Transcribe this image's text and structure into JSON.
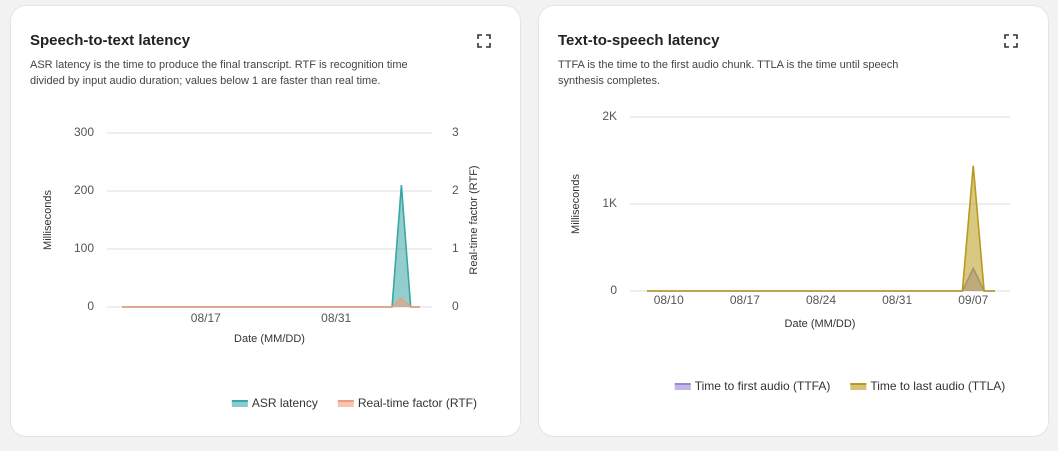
{
  "chart_data": [
    {
      "type": "area",
      "title": "Speech-to-text latency",
      "subtitle": "ASR latency is the time to produce the final transcript. RTF is recognition time divided by input audio duration; values below 1 are faster than real time.",
      "x": [
        "08/08",
        "08/09",
        "08/10",
        "08/11",
        "08/12",
        "08/13",
        "08/14",
        "08/15",
        "08/16",
        "08/17",
        "08/18",
        "08/19",
        "08/20",
        "08/21",
        "08/22",
        "08/23",
        "08/24",
        "08/25",
        "08/26",
        "08/27",
        "08/28",
        "08/29",
        "08/30",
        "08/31",
        "09/01",
        "09/02",
        "09/03",
        "09/04",
        "09/05",
        "09/06",
        "09/07",
        "09/08",
        "09/09"
      ],
      "xticks": [
        "08/17",
        "08/31"
      ],
      "xlabel": "Date (MM/DD)",
      "ylabel": "Milliseconds",
      "y2label": "Real-time factor (RTF)",
      "ylim": [
        0,
        300
      ],
      "yticks": [
        0,
        100,
        200,
        300
      ],
      "y2lim": [
        0,
        3
      ],
      "y2ticks": [
        0,
        1,
        2,
        3
      ],
      "grid": true,
      "legend": "bottom-right",
      "series": [
        {
          "name": "ASR latency",
          "color": "#3aa6a6",
          "values": [
            0,
            0,
            0,
            0,
            0,
            0,
            0,
            0,
            0,
            0,
            0,
            0,
            0,
            0,
            0,
            0,
            0,
            0,
            0,
            0,
            0,
            0,
            0,
            0,
            0,
            0,
            0,
            0,
            0,
            0,
            210,
            0,
            0
          ]
        },
        {
          "name": "Real-time factor (RTF)",
          "color": "#f29b7e",
          "axis": "y2",
          "values": [
            0,
            0,
            0,
            0,
            0,
            0,
            0,
            0,
            0,
            0,
            0,
            0,
            0,
            0,
            0,
            0,
            0,
            0,
            0,
            0,
            0,
            0,
            0,
            0,
            0,
            0,
            0,
            0,
            0,
            0,
            0.15,
            0,
            0
          ]
        }
      ]
    },
    {
      "type": "area",
      "title": "Text-to-speech latency",
      "subtitle": "TTFA is the time to the first audio chunk. TTLA is the time until speech synthesis completes.",
      "x": [
        "08/08",
        "08/09",
        "08/10",
        "08/11",
        "08/12",
        "08/13",
        "08/14",
        "08/15",
        "08/16",
        "08/17",
        "08/18",
        "08/19",
        "08/20",
        "08/21",
        "08/22",
        "08/23",
        "08/24",
        "08/25",
        "08/26",
        "08/27",
        "08/28",
        "08/29",
        "08/30",
        "08/31",
        "09/01",
        "09/02",
        "09/03",
        "09/04",
        "09/05",
        "09/06",
        "09/07",
        "09/08",
        "09/09"
      ],
      "xticks": [
        "08/10",
        "08/17",
        "08/24",
        "08/31",
        "09/07"
      ],
      "xlabel": "Date (MM/DD)",
      "ylabel": "Milliseconds",
      "ylim": [
        0,
        2000
      ],
      "yticks": [
        0,
        {
          "value": 1000,
          "label": "1K"
        },
        {
          "value": 2000,
          "label": "2K"
        }
      ],
      "grid": true,
      "legend": "bottom",
      "series": [
        {
          "name": "Time to first audio (TTFA)",
          "color": "#9a85d8",
          "values": [
            0,
            0,
            0,
            0,
            0,
            0,
            0,
            0,
            0,
            0,
            0,
            0,
            0,
            0,
            0,
            0,
            0,
            0,
            0,
            0,
            0,
            0,
            0,
            0,
            0,
            0,
            0,
            0,
            0,
            0,
            260,
            0,
            0
          ]
        },
        {
          "name": "Time to last audio (TTLA)",
          "color": "#b89a1c",
          "values": [
            0,
            0,
            0,
            0,
            0,
            0,
            0,
            0,
            0,
            0,
            0,
            0,
            0,
            0,
            0,
            0,
            0,
            0,
            0,
            0,
            0,
            0,
            0,
            0,
            0,
            0,
            0,
            0,
            0,
            0,
            1440,
            0,
            0
          ]
        }
      ]
    }
  ]
}
